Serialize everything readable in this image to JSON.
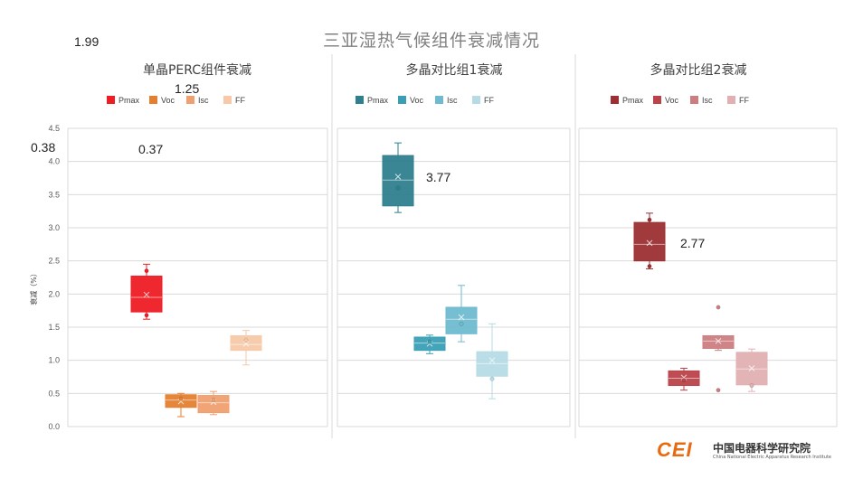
{
  "title": "三亚湿热气候组件衰减情况",
  "ylabel": "衰减（%）",
  "y_ticks": [
    "0.0",
    "0.5",
    "1.0",
    "1.5",
    "2.0",
    "2.5",
    "3.0",
    "3.5",
    "4.0",
    "4.5"
  ],
  "annotations": {
    "a1": "1.99",
    "a2": "1.25",
    "a3": "0.38",
    "a4": "0.37",
    "a5": "3.77",
    "a6": "2.77"
  },
  "logo": {
    "mark": "CEI",
    "name": "中国电器科学研究院",
    "english": "China National Electric Apparatus Research Institute"
  },
  "chart_data": [
    {
      "type": "box",
      "title": "单晶PERC组件衰减",
      "ylabel": "衰减（%）",
      "ylim": [
        0,
        4.5
      ],
      "grid": true,
      "legend_position": "top",
      "series": [
        {
          "name": "Pmax",
          "color": "#ee1c25",
          "min": 1.62,
          "q1": 1.73,
          "median": 1.95,
          "mean": 1.99,
          "q3": 2.27,
          "max": 2.45,
          "points": [
            2.35,
            1.68
          ]
        },
        {
          "name": "Voc",
          "color": "#e57f30",
          "min": 0.15,
          "q1": 0.29,
          "median": 0.4,
          "mean": 0.38,
          "q3": 0.48,
          "max": 0.5,
          "points": [
            0.42
          ]
        },
        {
          "name": "Isc",
          "color": "#f0a070",
          "min": 0.18,
          "q1": 0.21,
          "median": 0.36,
          "mean": 0.37,
          "q3": 0.47,
          "max": 0.53,
          "points": [
            0.4
          ]
        },
        {
          "name": "FF",
          "color": "#f7c9a8",
          "min": 0.93,
          "q1": 1.15,
          "median": 1.24,
          "mean": 1.25,
          "q3": 1.37,
          "max": 1.45,
          "points": [
            1.3
          ]
        }
      ]
    },
    {
      "type": "box",
      "title": "多晶对比组1衰减",
      "ylabel": "衰减（%）",
      "ylim": [
        0,
        4.5
      ],
      "grid": true,
      "legend_position": "top",
      "series": [
        {
          "name": "Pmax",
          "color": "#2f7f8f",
          "min": 3.23,
          "q1": 3.33,
          "median": 3.72,
          "mean": 3.77,
          "q3": 4.09,
          "max": 4.28,
          "points": [
            3.6
          ]
        },
        {
          "name": "Voc",
          "color": "#3a9fb5",
          "min": 1.1,
          "q1": 1.15,
          "median": 1.26,
          "mean": 1.25,
          "q3": 1.35,
          "max": 1.38,
          "points": [
            1.28
          ]
        },
        {
          "name": "Isc",
          "color": "#6fbad0",
          "min": 1.28,
          "q1": 1.4,
          "median": 1.62,
          "mean": 1.65,
          "q3": 1.8,
          "max": 2.13,
          "points": [
            1.55
          ]
        },
        {
          "name": "FF",
          "color": "#b6dbe6",
          "min": 0.42,
          "q1": 0.76,
          "median": 0.95,
          "mean": 1.0,
          "q3": 1.13,
          "max": 1.55,
          "points": [
            0.72
          ]
        }
      ]
    },
    {
      "type": "box",
      "title": "多晶对比组2衰减",
      "ylabel": "衰减（%）",
      "ylim": [
        0,
        4.5
      ],
      "grid": true,
      "legend_position": "top",
      "series": [
        {
          "name": "Pmax",
          "color": "#9b2f33",
          "min": 2.38,
          "q1": 2.5,
          "median": 2.75,
          "mean": 2.77,
          "q3": 3.08,
          "max": 3.22,
          "points": [
            3.12,
            2.42
          ]
        },
        {
          "name": "Voc",
          "color": "#b94349",
          "min": 0.55,
          "q1": 0.62,
          "median": 0.73,
          "mean": 0.74,
          "q3": 0.84,
          "max": 0.88,
          "points": [
            0.7
          ]
        },
        {
          "name": "Isc",
          "color": "#cc7d80",
          "min": 1.15,
          "q1": 1.18,
          "median": 1.29,
          "mean": 1.29,
          "q3": 1.37,
          "max": 1.37,
          "points": [
            1.8,
            0.55
          ]
        },
        {
          "name": "FF",
          "color": "#e2b0b2",
          "min": 0.53,
          "q1": 0.63,
          "median": 0.87,
          "mean": 0.88,
          "q3": 1.12,
          "max": 1.17,
          "points": [
            0.62
          ]
        }
      ]
    }
  ]
}
